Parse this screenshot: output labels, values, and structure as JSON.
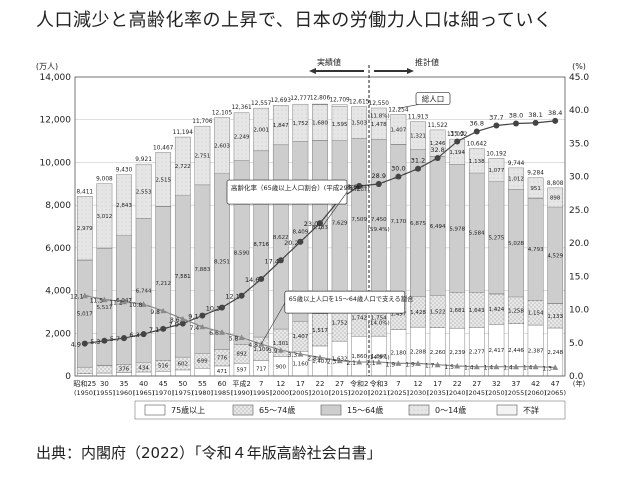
{
  "page": {
    "title": "人口減少と高齢化率の上昇で、日本の労働力人口は細っていく",
    "source": "出典：内閣府（2022）「令和４年版高齢社会白書」"
  },
  "chart_data": {
    "type": "bar",
    "title": "人口減少と高齢化率の上昇で、日本の労働力人口は細っていく",
    "ylabel_left": "(万人)",
    "ylabel_right": "(%)",
    "xlabel": "(年)",
    "ylim_left": [
      0,
      14000
    ],
    "ylim_right": [
      0,
      45
    ],
    "yticks_left": [
      "0",
      "2,000",
      "4,000",
      "6,000",
      "8,000",
      "10,000",
      "12,000",
      "14,000"
    ],
    "yticks_right": [
      "0.0",
      "5.0",
      "10.0",
      "15.0",
      "20.0",
      "25.0",
      "30.0",
      "35.0",
      "40.0",
      "45.0"
    ],
    "grid": true,
    "legend_position": "bottom",
    "categories": [
      "昭和25",
      "30",
      "35",
      "40",
      "45",
      "50",
      "55",
      "60",
      "平成2",
      "7",
      "12",
      "17",
      "22",
      "27",
      "令和2",
      "令和3",
      "7",
      "12",
      "17",
      "22",
      "27",
      "32",
      "37",
      "42",
      "47"
    ],
    "categories_year": [
      "(1950)",
      "(1955)",
      "(1960)",
      "(1965)",
      "(1970)",
      "(1975)",
      "(1980)",
      "(1985)",
      "(1990)",
      "(1995)",
      "(2000)",
      "(2005)",
      "(2010)",
      "(2015)",
      "(2020)",
      "(2021)",
      "(2025)",
      "(2030)",
      "(2035)",
      "(2040)",
      "(2045)",
      "(2050)",
      "(2055)",
      "(2060)",
      "(2065)"
    ],
    "series": [
      {
        "name": "75歳以上",
        "values": [
          107,
          139,
          164,
          189,
          224,
          284,
          366,
          471,
          597,
          717,
          900,
          1160,
          1407,
          1632,
          1860,
          1867,
          2180,
          2288,
          2260,
          2239,
          2277,
          2417,
          2446,
          2387,
          2248
        ]
      },
      {
        "name": "65～74歳",
        "values": [
          309,
          338,
          376,
          434,
          516,
          602,
          699,
          776,
          892,
          1109,
          1301,
          1407,
          1517,
          1752,
          1742,
          1754,
          1497,
          1428,
          1522,
          1681,
          1643,
          1424,
          1258,
          1154,
          1133
        ]
      },
      {
        "name": "15～64歳",
        "values": [
          5017,
          5517,
          6047,
          6744,
          7212,
          7581,
          7883,
          8251,
          8590,
          8716,
          8622,
          8409,
          8103,
          7629,
          7509,
          7450,
          7170,
          6875,
          6494,
          5978,
          5584,
          5275,
          5028,
          4793,
          4529
        ]
      },
      {
        "name": "0～14歳",
        "values": [
          2979,
          3012,
          2843,
          2553,
          2515,
          2722,
          2751,
          2603,
          2249,
          2001,
          1847,
          1752,
          1680,
          1595,
          1503,
          1478,
          1407,
          1321,
          1246,
          1194,
          1138,
          1077,
          1012,
          951,
          898
        ]
      },
      {
        "name": "不詳",
        "values": [
          0,
          0,
          0,
          0,
          0,
          0,
          0,
          0,
          0,
          0,
          0,
          0,
          26,
          98,
          0,
          0,
          0,
          0,
          0,
          0,
          0,
          0,
          0,
          0,
          0
        ]
      }
    ],
    "totals": [
      8411,
      9008,
      9430,
      9921,
      10467,
      11194,
      11706,
      12105,
      12361,
      12557,
      12693,
      12777,
      12806,
      12709,
      12615,
      12550,
      12254,
      11913,
      11522,
      11092,
      10642,
      10192,
      9744,
      9284,
      8808
    ],
    "aging_rate": {
      "name": "高齢化率（65歳以上人口割合）(平成29年推計)",
      "values": [
        4.9,
        5.3,
        5.7,
        6.3,
        7.1,
        7.9,
        9.1,
        10.3,
        12.1,
        14.6,
        17.4,
        20.2,
        23.0,
        26.6,
        28.6,
        28.9,
        30.0,
        31.2,
        32.8,
        35.3,
        36.8,
        37.7,
        38.0,
        38.1,
        38.4
      ]
    },
    "support_ratio": {
      "name": "65歳以上人口を15～64歳人口で支える割合",
      "values": [
        12.1,
        11.5,
        11.2,
        10.8,
        9.8,
        8.6,
        7.4,
        6.6,
        5.8,
        4.8,
        3.9,
        3.3,
        2.8,
        2.3,
        2.1,
        2.1,
        1.9,
        1.9,
        1.7,
        1.5,
        1.4,
        1.4,
        1.4,
        1.4,
        1.3
      ]
    },
    "annotations": {
      "actual_label": "実績値",
      "projection_label": "推計値",
      "total_label": "総人口",
      "aging_rate_callout": "高齢化率（65歳以上人口割合）(平成29年推計)",
      "support_callout": "65歳以上人口を15～64歳人口で支える割合",
      "percent_2021_65_74": "(14.0%)",
      "percent_2021_75plus": "(14.9%)",
      "percent_2021_15_64": "(59.4%)",
      "percent_2021_0_14": "(11.8%)"
    },
    "colors": {
      "75plus": "#ffffff",
      "65_74": "#e8e8e8",
      "15_64": "#cfcfcf",
      "0_14": "#e6e6e6",
      "unknown": "#f3f3f3",
      "line": "#555555",
      "support_line": "#888888",
      "grid": "#cccccc"
    }
  }
}
